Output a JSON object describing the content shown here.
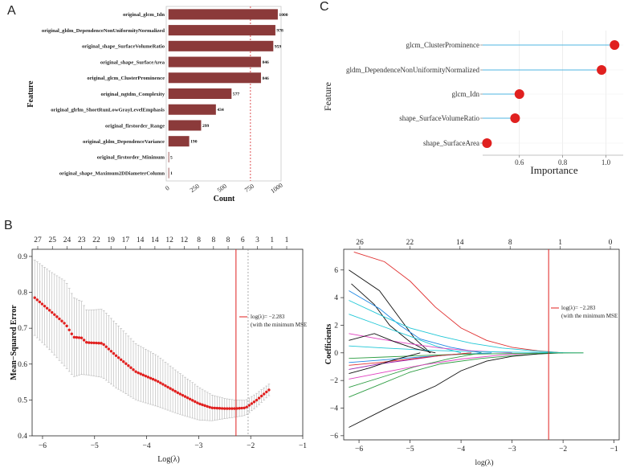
{
  "panels": {
    "a": "A",
    "b": "B",
    "c": "C"
  },
  "chart_data": [
    {
      "id": "A",
      "type": "bar",
      "orientation": "horizontal",
      "title": "",
      "xlabel": "Count",
      "ylabel": "Feature",
      "xlim": [
        -20,
        1030
      ],
      "xticks": [
        0,
        250,
        500,
        750,
        1000
      ],
      "reference_line": 750,
      "bar_color": "#8B3A3A",
      "categories": [
        "original_glcm_Idn",
        "original_gldm_DependenceNonUniformityNormalized",
        "original_shape_SurfaceVolumeRatio",
        "original_shape_SurfaceArea",
        "original_glcm_ClusterProminence",
        "original_ngtdm_Complexity",
        "original_glrlm_ShortRunLowGrayLevelEmphasis",
        "original_firstorder_Range",
        "original_gldm_DependenceVariance",
        "original_firstorder_Minimum",
        "original_shape_Maximum2DDiameterColumn"
      ],
      "values": [
        1000,
        978,
        959,
        846,
        846,
        577,
        434,
        299,
        190,
        5,
        1
      ]
    },
    {
      "id": "C",
      "type": "scatter",
      "style": "lollipop",
      "xlabel": "Importance",
      "ylabel": "Feature",
      "xlim": [
        0.43,
        1.08
      ],
      "xticks": [
        0.6,
        0.8,
        1.0
      ],
      "xtick_labels": [
        "0.6",
        "0.8",
        "1.0"
      ],
      "dot_color": "#E0201F",
      "stem_color": "#4FB6E0",
      "categories": [
        "glcm_ClusterProminence",
        "gldm_DependenceNonUniformityNormalized",
        "glcm_Idn",
        "shape_SurfaceVolumeRatio",
        "shape_SurfaceArea"
      ],
      "values": [
        1.04,
        0.98,
        0.6,
        0.58,
        0.45
      ]
    },
    {
      "id": "B-left",
      "type": "line",
      "style": "error-bar-points",
      "xlabel": "Log(λ)",
      "ylabel": "Mean−Squared Error",
      "xlim": [
        -6.2,
        -1.0
      ],
      "ylim": [
        0.4,
        0.92
      ],
      "xticks": [
        -6,
        -5,
        -4,
        -3,
        -2,
        -1
      ],
      "xtick_labels": [
        "−6",
        "−5",
        "−4",
        "−3",
        "−2",
        "−1"
      ],
      "yticks": [
        0.4,
        0.5,
        0.6,
        0.7,
        0.8,
        0.9
      ],
      "ytick_labels": [
        "0.4",
        "0.5",
        "0.6",
        "0.7",
        "0.8",
        "0.9"
      ],
      "top_axis_labels": [
        "27",
        "25",
        "24",
        "23",
        "22",
        "19",
        "17",
        "14",
        "14",
        "12",
        "12",
        "8",
        "8",
        "8",
        "6",
        "3",
        "1",
        "1"
      ],
      "lambda_min_line": -2.283,
      "lambda_1se_line": -2.05,
      "point_color": "#E0201F",
      "legend_text": "log(λ)= −2.283",
      "legend_sub": "(with the minimum MSE",
      "curve_x": [
        -6.15,
        -5.85,
        -5.55,
        -5.4,
        -5.25,
        -5.15,
        -4.85,
        -4.6,
        -4.2,
        -3.8,
        -3.4,
        -3.0,
        -2.75,
        -2.5,
        -2.3,
        -2.1,
        -1.9,
        -1.65
      ],
      "curve_y": [
        0.785,
        0.748,
        0.71,
        0.675,
        0.673,
        0.66,
        0.658,
        0.625,
        0.578,
        0.553,
        0.52,
        0.49,
        0.478,
        0.476,
        0.476,
        0.478,
        0.498,
        0.528
      ],
      "curve_err": [
        0.105,
        0.11,
        0.12,
        0.11,
        0.102,
        0.09,
        0.095,
        0.09,
        0.078,
        0.071,
        0.058,
        0.046,
        0.036,
        0.028,
        0.024,
        0.021,
        0.019,
        0.016
      ]
    },
    {
      "id": "B-right",
      "type": "line",
      "style": "coefficient-paths",
      "xlabel": "log(λ)",
      "ylabel": "Coefficients",
      "xlim": [
        -6.3,
        -0.9
      ],
      "ylim": [
        -6.3,
        7.5
      ],
      "xticks": [
        -6,
        -5,
        -4,
        -3,
        -2,
        -1
      ],
      "xtick_labels": [
        "−6",
        "−5",
        "−4",
        "−3",
        "−2",
        "−1"
      ],
      "yticks": [
        -6,
        -4,
        -2,
        0,
        2,
        4,
        6
      ],
      "ytick_labels": [
        "−6",
        "−4",
        "−2",
        "0",
        "2",
        "4",
        "6"
      ],
      "top_axis_labels": [
        "26",
        "22",
        "14",
        "8",
        "1",
        "0"
      ],
      "lambda_line": -2.283,
      "legend_text": "log(λ)= −2.283",
      "legend_sub": "(with the minimum MSE",
      "series": [
        {
          "color": "#E03030",
          "x": [
            -6.1,
            -5.5,
            -5.0,
            -4.5,
            -4.0,
            -3.5,
            -3.0,
            -2.5,
            -2.0
          ],
          "y": [
            7.3,
            6.6,
            5.2,
            3.3,
            1.8,
            0.9,
            0.4,
            0.15,
            0.0
          ]
        },
        {
          "color": "#111111",
          "x": [
            -6.2,
            -5.6,
            -5.2,
            -4.9,
            -4.6
          ],
          "y": [
            6.0,
            4.5,
            2.5,
            1.0,
            0.0
          ]
        },
        {
          "color": "#111111",
          "x": [
            -6.15,
            -5.7,
            -5.4,
            -5.0,
            -4.6
          ],
          "y": [
            5.0,
            3.5,
            2.0,
            0.8,
            0.0
          ]
        },
        {
          "color": "#1e88e5",
          "x": [
            -6.2,
            -5.6,
            -5.2,
            -4.8,
            -4.2,
            -3.6
          ],
          "y": [
            4.5,
            3.2,
            2.0,
            1.0,
            0.4,
            0.0
          ]
        },
        {
          "color": "#20c7d6",
          "x": [
            -6.2,
            -5.5,
            -5.0,
            -4.4,
            -3.8,
            -3.2,
            -2.6,
            -2.0
          ],
          "y": [
            3.8,
            2.6,
            1.8,
            1.2,
            0.7,
            0.35,
            0.15,
            0.0
          ]
        },
        {
          "color": "#20c7d6",
          "x": [
            -6.2,
            -5.6,
            -5.0,
            -4.5,
            -4.0
          ],
          "y": [
            2.8,
            2.0,
            1.2,
            0.5,
            0.0
          ]
        },
        {
          "color": "#2f9e44",
          "x": [
            -6.2,
            -5.6,
            -5.0,
            -4.4,
            -3.6,
            -2.8,
            -2.2
          ],
          "y": [
            -3.2,
            -2.3,
            -1.4,
            -0.8,
            -0.4,
            -0.15,
            0.0
          ]
        },
        {
          "color": "#2f9e44",
          "x": [
            -6.2,
            -5.5,
            -4.9,
            -4.2,
            -3.6
          ],
          "y": [
            -2.5,
            -1.7,
            -1.0,
            -0.4,
            0.0
          ]
        },
        {
          "color": "#111111",
          "x": [
            -6.2,
            -5.5,
            -5.0,
            -4.5,
            -4.0,
            -3.5,
            -3.0,
            -2.5,
            -2.0
          ],
          "y": [
            -5.4,
            -4.1,
            -3.2,
            -2.4,
            -1.3,
            -0.6,
            -0.25,
            -0.08,
            0.0
          ]
        },
        {
          "color": "#e040c0",
          "x": [
            -6.2,
            -5.5,
            -4.8,
            -4.0,
            -3.2,
            -2.5
          ],
          "y": [
            -1.9,
            -1.4,
            -0.9,
            -0.45,
            -0.15,
            0.0
          ]
        },
        {
          "color": "#9c27b0",
          "x": [
            -6.2,
            -5.6,
            -5.0,
            -4.4,
            -3.8
          ],
          "y": [
            -1.2,
            -0.8,
            -0.5,
            -0.2,
            0.0
          ]
        },
        {
          "color": "#e040c0",
          "x": [
            -6.2,
            -5.6,
            -5.0,
            -4.4,
            -3.8,
            -3.0
          ],
          "y": [
            1.4,
            1.0,
            0.65,
            0.35,
            0.15,
            0.0
          ]
        },
        {
          "color": "#1e88e5",
          "x": [
            -6.2,
            -5.5,
            -4.8,
            -4.1,
            -3.4
          ],
          "y": [
            -0.7,
            -0.5,
            -0.3,
            -0.12,
            0.0
          ]
        },
        {
          "color": "#20c7d6",
          "x": [
            -6.2,
            -5.5,
            -4.7,
            -3.9,
            -3.0,
            -2.2,
            -1.6
          ],
          "y": [
            0.5,
            0.35,
            0.2,
            0.1,
            0.05,
            0.02,
            0.0
          ]
        },
        {
          "color": "#2f9e44",
          "x": [
            -6.2,
            -5.5,
            -4.8,
            -4.0,
            -3.0,
            -2.2,
            -1.6
          ],
          "y": [
            -0.4,
            -0.3,
            -0.2,
            -0.1,
            -0.05,
            -0.02,
            0.0
          ]
        },
        {
          "color": "#111111",
          "x": [
            -6.2,
            -5.7,
            -5.3,
            -4.9,
            -4.5
          ],
          "y": [
            0.9,
            1.4,
            0.8,
            0.3,
            0.0
          ]
        },
        {
          "color": "#e03030",
          "x": [
            -6.2,
            -5.6,
            -5.0,
            -4.4,
            -3.8
          ],
          "y": [
            -0.9,
            -0.7,
            -0.45,
            -0.2,
            0.0
          ]
        },
        {
          "color": "#111111",
          "x": [
            -6.2,
            -5.8,
            -5.4,
            -5.0,
            -4.8
          ],
          "y": [
            -1.5,
            -1.1,
            -0.6,
            -0.2,
            0.0
          ]
        }
      ]
    }
  ]
}
